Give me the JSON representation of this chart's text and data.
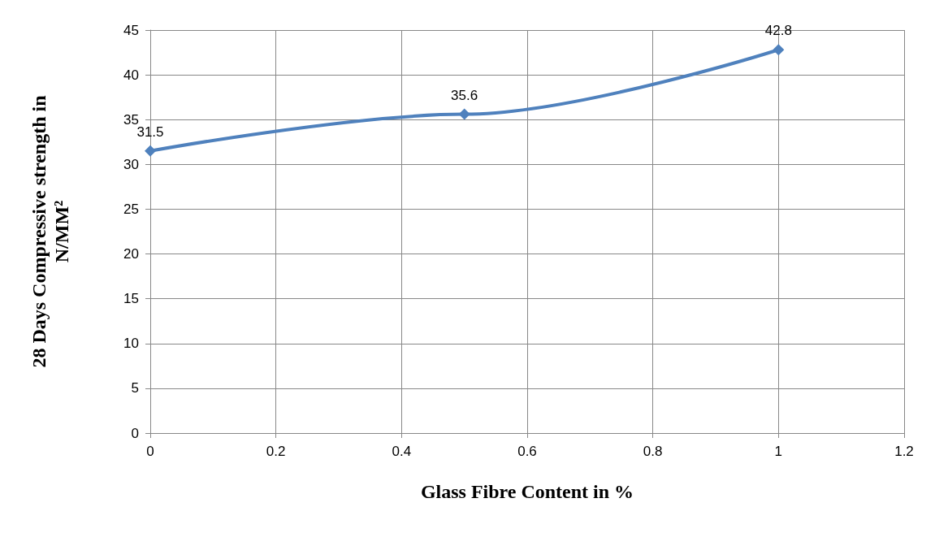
{
  "chart_data": {
    "type": "line",
    "xlabel": "Glass Fibre Content in %",
    "ylabel": "28 Days Compressive strength in N/MM²",
    "x": [
      0,
      0.5,
      1
    ],
    "series": [
      {
        "color": "#4f81bd",
        "values": [
          31.5,
          35.6,
          42.8
        ]
      }
    ],
    "xlim": [
      0,
      1.2
    ],
    "xticks": [
      0,
      0.2,
      0.4,
      0.6,
      0.8,
      1,
      1.2
    ],
    "ylim": [
      0,
      45
    ],
    "yticks": [
      0,
      5,
      10,
      15,
      20,
      25,
      30,
      35,
      40,
      45
    ],
    "grid": true,
    "marker": "diamond",
    "data_labels": true
  }
}
